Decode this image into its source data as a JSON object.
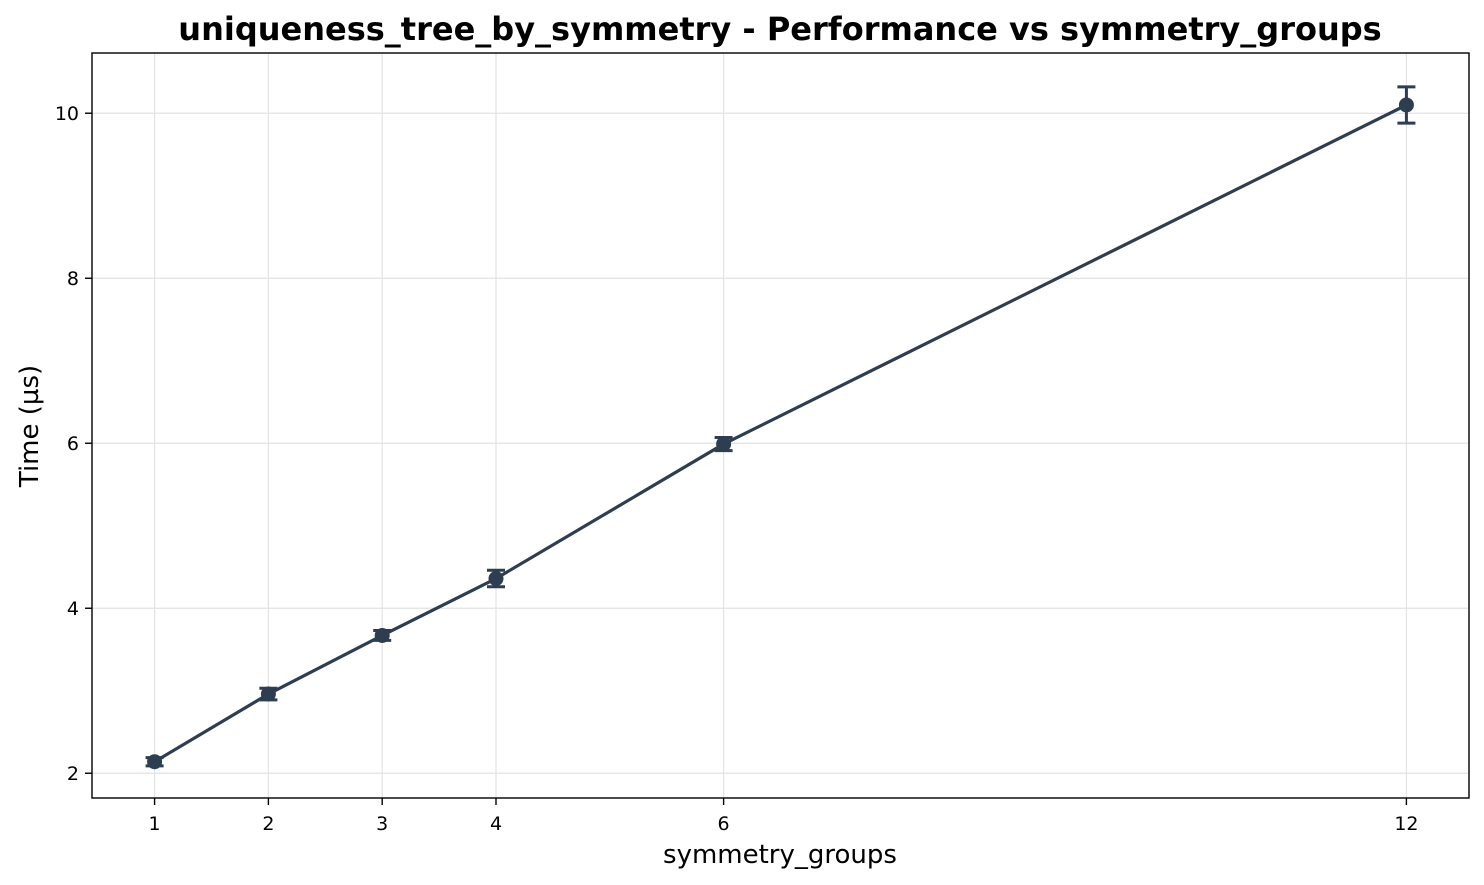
{
  "chart_data": {
    "type": "line",
    "title": "uniqueness_tree_by_symmetry - Performance vs symmetry_groups",
    "xlabel": "symmetry_groups",
    "ylabel": "Time (µs)",
    "x": [
      1,
      2,
      3,
      4,
      6,
      12
    ],
    "x_tick_labels": [
      "1",
      "2",
      "3",
      "4",
      "6",
      "12"
    ],
    "y_ticks": [
      2,
      4,
      6,
      8,
      10
    ],
    "y_tick_labels": [
      "2",
      "4",
      "6",
      "8",
      "10"
    ],
    "xlim": [
      0.45,
      12.55
    ],
    "ylim": [
      1.7,
      10.73
    ],
    "grid": true,
    "legend": "none",
    "series": [
      {
        "values": [
          2.14,
          2.96,
          3.67,
          4.36,
          5.99,
          10.1
        ],
        "error": [
          0.05,
          0.07,
          0.06,
          0.1,
          0.08,
          0.22
        ],
        "color": "#2c3e50"
      }
    ]
  }
}
